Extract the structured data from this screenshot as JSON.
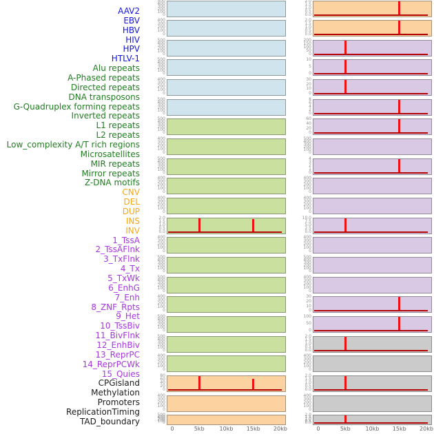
{
  "chart_data": {
    "type": "area",
    "title": "",
    "description": "Grid of mean signal profiles over a 0-20kb window; each panel shows a red profile near zero with vertical enrichment spike(s).",
    "x": {
      "tick_labels": [
        "0",
        "5kb",
        "10kb",
        "15kb",
        "20kb"
      ],
      "tick_values_kb": [
        0,
        5,
        10,
        15,
        20
      ],
      "range_kb": [
        0,
        20
      ],
      "grid": false,
      "legend": "none"
    },
    "colors": {
      "spike": "#ee1212",
      "baseline": "#b30000",
      "fill": {
        "virus": "#cfe4ec",
        "repeat": "#c9e09f",
        "sv": "#fcd2a0",
        "state": "#d9c9e4",
        "other": "#cbcbcb"
      },
      "label": {
        "virus": "#1313d9",
        "repeat": "#1e7d1e",
        "sv": "#f7a711",
        "state": "#a735e0",
        "other": "#1a1a1a"
      }
    },
    "feature_labels": [
      {
        "text": "AAV2",
        "class": "virus"
      },
      {
        "text": "EBV",
        "class": "virus"
      },
      {
        "text": "HBV",
        "class": "virus"
      },
      {
        "text": "HIV",
        "class": "virus"
      },
      {
        "text": "HPV",
        "class": "virus"
      },
      {
        "text": "HTLV-1",
        "class": "virus"
      },
      {
        "text": "Alu repeats",
        "class": "repeat"
      },
      {
        "text": "A-Phased repeats",
        "class": "repeat"
      },
      {
        "text": "Directed repeats",
        "class": "repeat"
      },
      {
        "text": "DNA transposons",
        "class": "repeat"
      },
      {
        "text": "G-Quadruplex forming repeats",
        "class": "repeat"
      },
      {
        "text": "Inverted repeats",
        "class": "repeat"
      },
      {
        "text": "L1 repeats",
        "class": "repeat"
      },
      {
        "text": "L2 repeats",
        "class": "repeat"
      },
      {
        "text": "Low_complexity A/T rich regions",
        "class": "repeat"
      },
      {
        "text": "Microsatellites",
        "class": "repeat"
      },
      {
        "text": "MIR repeats",
        "class": "repeat"
      },
      {
        "text": "Mirror repeats",
        "class": "repeat"
      },
      {
        "text": "Z-DNA motifs",
        "class": "repeat"
      },
      {
        "text": "CNV",
        "class": "sv"
      },
      {
        "text": "DEL",
        "class": "sv"
      },
      {
        "text": "DUP",
        "class": "sv"
      },
      {
        "text": "INS",
        "class": "sv"
      },
      {
        "text": "INV",
        "class": "sv"
      },
      {
        "text": "1_TssA",
        "class": "state"
      },
      {
        "text": "2_TssAFlnk",
        "class": "state"
      },
      {
        "text": "3_TxFlnk",
        "class": "state"
      },
      {
        "text": "4_Tx",
        "class": "state"
      },
      {
        "text": "5_TxWk",
        "class": "state"
      },
      {
        "text": "6_EnhG",
        "class": "state"
      },
      {
        "text": "7_Enh",
        "class": "state"
      },
      {
        "text": "8_ZNF_Rpts",
        "class": "state"
      },
      {
        "text": "9_Het",
        "class": "state"
      },
      {
        "text": "10_TssBiv",
        "class": "state"
      },
      {
        "text": "11_BivFlnk",
        "class": "state"
      },
      {
        "text": "12_EnhBiv",
        "class": "state"
      },
      {
        "text": "13_ReprPC",
        "class": "state"
      },
      {
        "text": "14_ReprPCWk",
        "class": "state"
      },
      {
        "text": "15_Quies",
        "class": "state"
      },
      {
        "text": "CPGisland",
        "class": "other"
      },
      {
        "text": "Methylation",
        "class": "other"
      },
      {
        "text": "Promoters",
        "class": "other"
      },
      {
        "text": "ReplicationTiming",
        "class": "other"
      },
      {
        "text": "TAD_boundary",
        "class": "other"
      }
    ],
    "columns": [
      {
        "name": "left-column",
        "panels": [
          {
            "feature": "AAV2",
            "class": "virus",
            "y_ticks": [
              "500",
              "400",
              "300",
              "200",
              "100",
              "0"
            ],
            "spikes": []
          },
          {
            "feature": "EBV",
            "class": "virus",
            "y_ticks": [
              "400",
              "300",
              "200",
              "100",
              "0"
            ],
            "spikes": []
          },
          {
            "feature": "HBV",
            "class": "virus",
            "y_ticks": [
              "500",
              "400",
              "300",
              "200",
              "100",
              "0"
            ],
            "spikes": []
          },
          {
            "feature": "HIV",
            "class": "virus",
            "y_ticks": [
              "500",
              "400",
              "300",
              "200",
              "100",
              "0"
            ],
            "spikes": []
          },
          {
            "feature": "HPV",
            "class": "virus",
            "y_ticks": [
              "400",
              "300",
              "200",
              "100",
              "0"
            ],
            "spikes": []
          },
          {
            "feature": "HTLV-1",
            "class": "virus",
            "y_ticks": [
              "500",
              "400",
              "300",
              "200",
              "100",
              "0"
            ],
            "spikes": []
          },
          {
            "feature": "Alu repeats",
            "class": "repeat",
            "y_ticks": [
              "500",
              "400",
              "300",
              "200",
              "100",
              "0"
            ],
            "spikes": []
          },
          {
            "feature": "A-Phased repeats",
            "class": "repeat",
            "y_ticks": [
              "400",
              "300",
              "200",
              "100",
              "0"
            ],
            "spikes": []
          },
          {
            "feature": "Directed repeats",
            "class": "repeat",
            "y_ticks": [
              "500",
              "400",
              "300",
              "200",
              "100",
              "0"
            ],
            "spikes": []
          },
          {
            "feature": "DNA transposons",
            "class": "repeat",
            "y_ticks": [
              "400",
              "300",
              "200",
              "100",
              "0"
            ],
            "spikes": []
          },
          {
            "feature": "G-Quadruplex forming repeats",
            "class": "repeat",
            "y_ticks": [
              "400",
              "300",
              "200",
              "100",
              "0"
            ],
            "spikes": []
          },
          {
            "feature": "Inverted repeats",
            "class": "repeat",
            "y_ticks": [
              "2.0",
              "1.5",
              "1.0",
              "0.5",
              "0.0"
            ],
            "spikes": [
              {
                "x_kb": 5,
                "height_frac": 1.0
              },
              {
                "x_kb": 15,
                "height_frac": 0.93
              }
            ]
          },
          {
            "feature": "L1 repeats",
            "class": "repeat",
            "y_ticks": [
              "400",
              "300",
              "200",
              "100",
              "0"
            ],
            "spikes": []
          },
          {
            "feature": "L2 repeats",
            "class": "repeat",
            "y_ticks": [
              "500",
              "400",
              "300",
              "200",
              "100",
              "0"
            ],
            "spikes": []
          },
          {
            "feature": "Low_complexity A/T rich regions",
            "class": "repeat",
            "y_ticks": [
              "500",
              "400",
              "300",
              "200",
              "100",
              "0"
            ],
            "spikes": []
          },
          {
            "feature": "Microsatellites",
            "class": "repeat",
            "y_ticks": [
              "400",
              "300",
              "200",
              "100",
              "0"
            ],
            "spikes": []
          },
          {
            "feature": "MIR repeats",
            "class": "repeat",
            "y_ticks": [
              "500",
              "400",
              "300",
              "200",
              "100",
              "0"
            ],
            "spikes": []
          },
          {
            "feature": "Mirror repeats",
            "class": "repeat",
            "y_ticks": [
              "500",
              "400",
              "300",
              "200",
              "100",
              "0"
            ],
            "spikes": []
          },
          {
            "feature": "Z-DNA motifs",
            "class": "repeat",
            "y_ticks": [
              "400",
              "300",
              "200",
              "100",
              "0"
            ],
            "spikes": []
          },
          {
            "feature": "CNV",
            "class": "sv",
            "y_ticks": [
              "80",
              "60",
              "40",
              "20",
              "0"
            ],
            "spikes": [
              {
                "x_kb": 5,
                "height_frac": 1.0
              },
              {
                "x_kb": 15,
                "height_frac": 0.8
              }
            ]
          },
          {
            "feature": "DEL",
            "class": "sv",
            "y_ticks": [
              "400",
              "300",
              "200",
              "100",
              "0"
            ],
            "spikes": []
          },
          {
            "feature": "DUP",
            "class": "sv",
            "y_ticks": [
              "500",
              "400",
              "300",
              "200",
              "100",
              "0"
            ],
            "spikes": []
          }
        ]
      },
      {
        "name": "right-column",
        "panels": [
          {
            "feature": "INS",
            "class": "sv",
            "y_ticks": [
              "2.0",
              "1.5",
              "1.0",
              "0.5",
              "0.0"
            ],
            "spikes": [
              {
                "x_kb": 15,
                "height_frac": 1.0
              }
            ]
          },
          {
            "feature": "INV",
            "class": "sv",
            "y_ticks": [
              "2.0",
              "1.5",
              "1.0",
              "0.5",
              "0.0"
            ],
            "spikes": [
              {
                "x_kb": 15,
                "height_frac": 1.0
              }
            ]
          },
          {
            "feature": "1_TssA",
            "class": "state",
            "y_ticks": [
              "200",
              "150",
              "100",
              "50",
              "0"
            ],
            "spikes": [
              {
                "x_kb": 5,
                "height_frac": 1.0
              }
            ]
          },
          {
            "feature": "2_TssAFlnk",
            "class": "state",
            "y_ticks": [
              "10",
              "5",
              "0"
            ],
            "spikes": [
              {
                "x_kb": 5,
                "height_frac": 1.0
              }
            ]
          },
          {
            "feature": "3_TxFlnk",
            "class": "state",
            "y_ticks": [
              "30",
              "20",
              "10",
              "0"
            ],
            "spikes": [
              {
                "x_kb": 5,
                "height_frac": 1.0
              }
            ]
          },
          {
            "feature": "4_Tx",
            "class": "state",
            "y_ticks": [
              "8",
              "6",
              "4",
              "2",
              "0"
            ],
            "spikes": [
              {
                "x_kb": 15,
                "height_frac": 1.0
              }
            ]
          },
          {
            "feature": "5_TxWk",
            "class": "state",
            "y_ticks": [
              "60",
              "40",
              "20",
              "0"
            ],
            "spikes": [
              {
                "x_kb": 15,
                "height_frac": 1.0
              }
            ]
          },
          {
            "feature": "6_EnhG",
            "class": "state",
            "y_ticks": [
              "500",
              "400",
              "300",
              "200",
              "100",
              "0"
            ],
            "spikes": []
          },
          {
            "feature": "7_Enh",
            "class": "state",
            "y_ticks": [
              "4",
              "3",
              "2",
              "1",
              "0"
            ],
            "spikes": [
              {
                "x_kb": 15,
                "height_frac": 1.0
              }
            ]
          },
          {
            "feature": "8_ZNF_Rpts",
            "class": "state",
            "y_ticks": [
              "400",
              "300",
              "200",
              "100",
              "0"
            ],
            "spikes": []
          },
          {
            "feature": "9_Het",
            "class": "state",
            "y_ticks": [
              "400",
              "300",
              "200",
              "100",
              "0"
            ],
            "spikes": []
          },
          {
            "feature": "10_TssBiv",
            "class": "state",
            "y_ticks": [
              "10.0",
              "7.5",
              "5.0",
              "2.5",
              "0.0"
            ],
            "spikes": [
              {
                "x_kb": 5,
                "height_frac": 1.0
              }
            ]
          },
          {
            "feature": "11_BivFlnk",
            "class": "state",
            "y_ticks": [
              "400",
              "300",
              "200",
              "100",
              "0"
            ],
            "spikes": []
          },
          {
            "feature": "12_EnhBiv",
            "class": "state",
            "y_ticks": [
              "500",
              "400",
              "300",
              "200",
              "100",
              "0"
            ],
            "spikes": []
          },
          {
            "feature": "13_ReprPC",
            "class": "state",
            "y_ticks": [
              "400",
              "300",
              "200",
              "100",
              "0"
            ],
            "spikes": []
          },
          {
            "feature": "14_ReprPCWk",
            "class": "state",
            "y_ticks": [
              "30",
              "20",
              "10",
              "0"
            ],
            "spikes": [
              {
                "x_kb": 15,
                "height_frac": 1.0
              }
            ]
          },
          {
            "feature": "15_Quies",
            "class": "state",
            "y_ticks": [
              "100",
              "50",
              "0"
            ],
            "spikes": [
              {
                "x_kb": 15,
                "height_frac": 1.0
              }
            ]
          },
          {
            "feature": "CPGisland",
            "class": "other",
            "y_ticks": [
              "2.0",
              "1.5",
              "1.0",
              "0.5",
              "0.0"
            ],
            "spikes": [
              {
                "x_kb": 5,
                "height_frac": 1.0
              }
            ]
          },
          {
            "feature": "Methylation",
            "class": "other",
            "y_ticks": [
              "400",
              "300",
              "200",
              "100",
              "0"
            ],
            "spikes": []
          },
          {
            "feature": "Promoters",
            "class": "other",
            "y_ticks": [
              "2.0",
              "1.5",
              "1.0",
              "0.5",
              "0.0"
            ],
            "spikes": [
              {
                "x_kb": 5,
                "height_frac": 1.0
              }
            ]
          },
          {
            "feature": "ReplicationTiming",
            "class": "other",
            "y_ticks": [
              "400",
              "300",
              "200",
              "100",
              "0"
            ],
            "spikes": []
          },
          {
            "feature": "TAD_boundary",
            "class": "other",
            "y_ticks": [
              "2.0",
              "1.5",
              "1.0",
              "0.5",
              "0.0"
            ],
            "spikes": [
              {
                "x_kb": 5,
                "height_frac": 1.0
              }
            ]
          }
        ]
      }
    ]
  }
}
